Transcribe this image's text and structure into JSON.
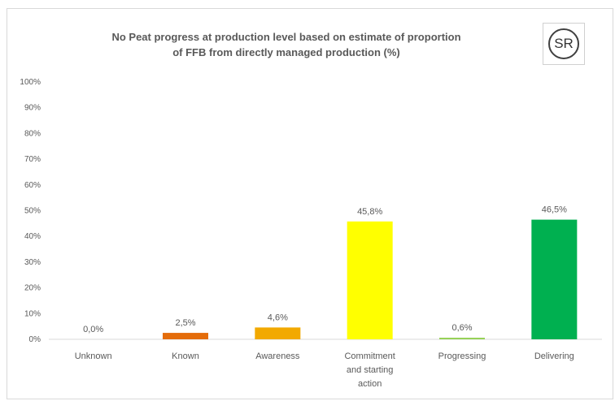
{
  "chart_data": {
    "type": "bar",
    "title_lines": [
      "No Peat progress at production level based on estimate of proportion",
      "of FFB from directly managed production (%)"
    ],
    "categories": [
      [
        "Unknown"
      ],
      [
        "Known"
      ],
      [
        "Awareness"
      ],
      [
        "Commitment",
        "and starting",
        "action"
      ],
      [
        "Progressing"
      ],
      [
        "Delivering"
      ]
    ],
    "values": [
      0.0,
      2.5,
      4.6,
      45.8,
      0.6,
      46.5
    ],
    "data_labels": [
      "0,0%",
      "2,5%",
      "4,6%",
      "45,8%",
      "0,6%",
      "46,5%"
    ],
    "bar_colors": [
      "#c00000",
      "#e46c0a",
      "#f2a900",
      "#ffff00",
      "#92d050",
      "#00b050"
    ],
    "ylim": [
      0,
      100
    ],
    "yticks": [
      "0%",
      "10%",
      "20%",
      "30%",
      "40%",
      "50%",
      "60%",
      "70%",
      "80%",
      "90%",
      "100%"
    ],
    "xlabel": "",
    "ylabel": "",
    "grid": false,
    "legend": "none"
  },
  "badge": {
    "text": "SR"
  }
}
